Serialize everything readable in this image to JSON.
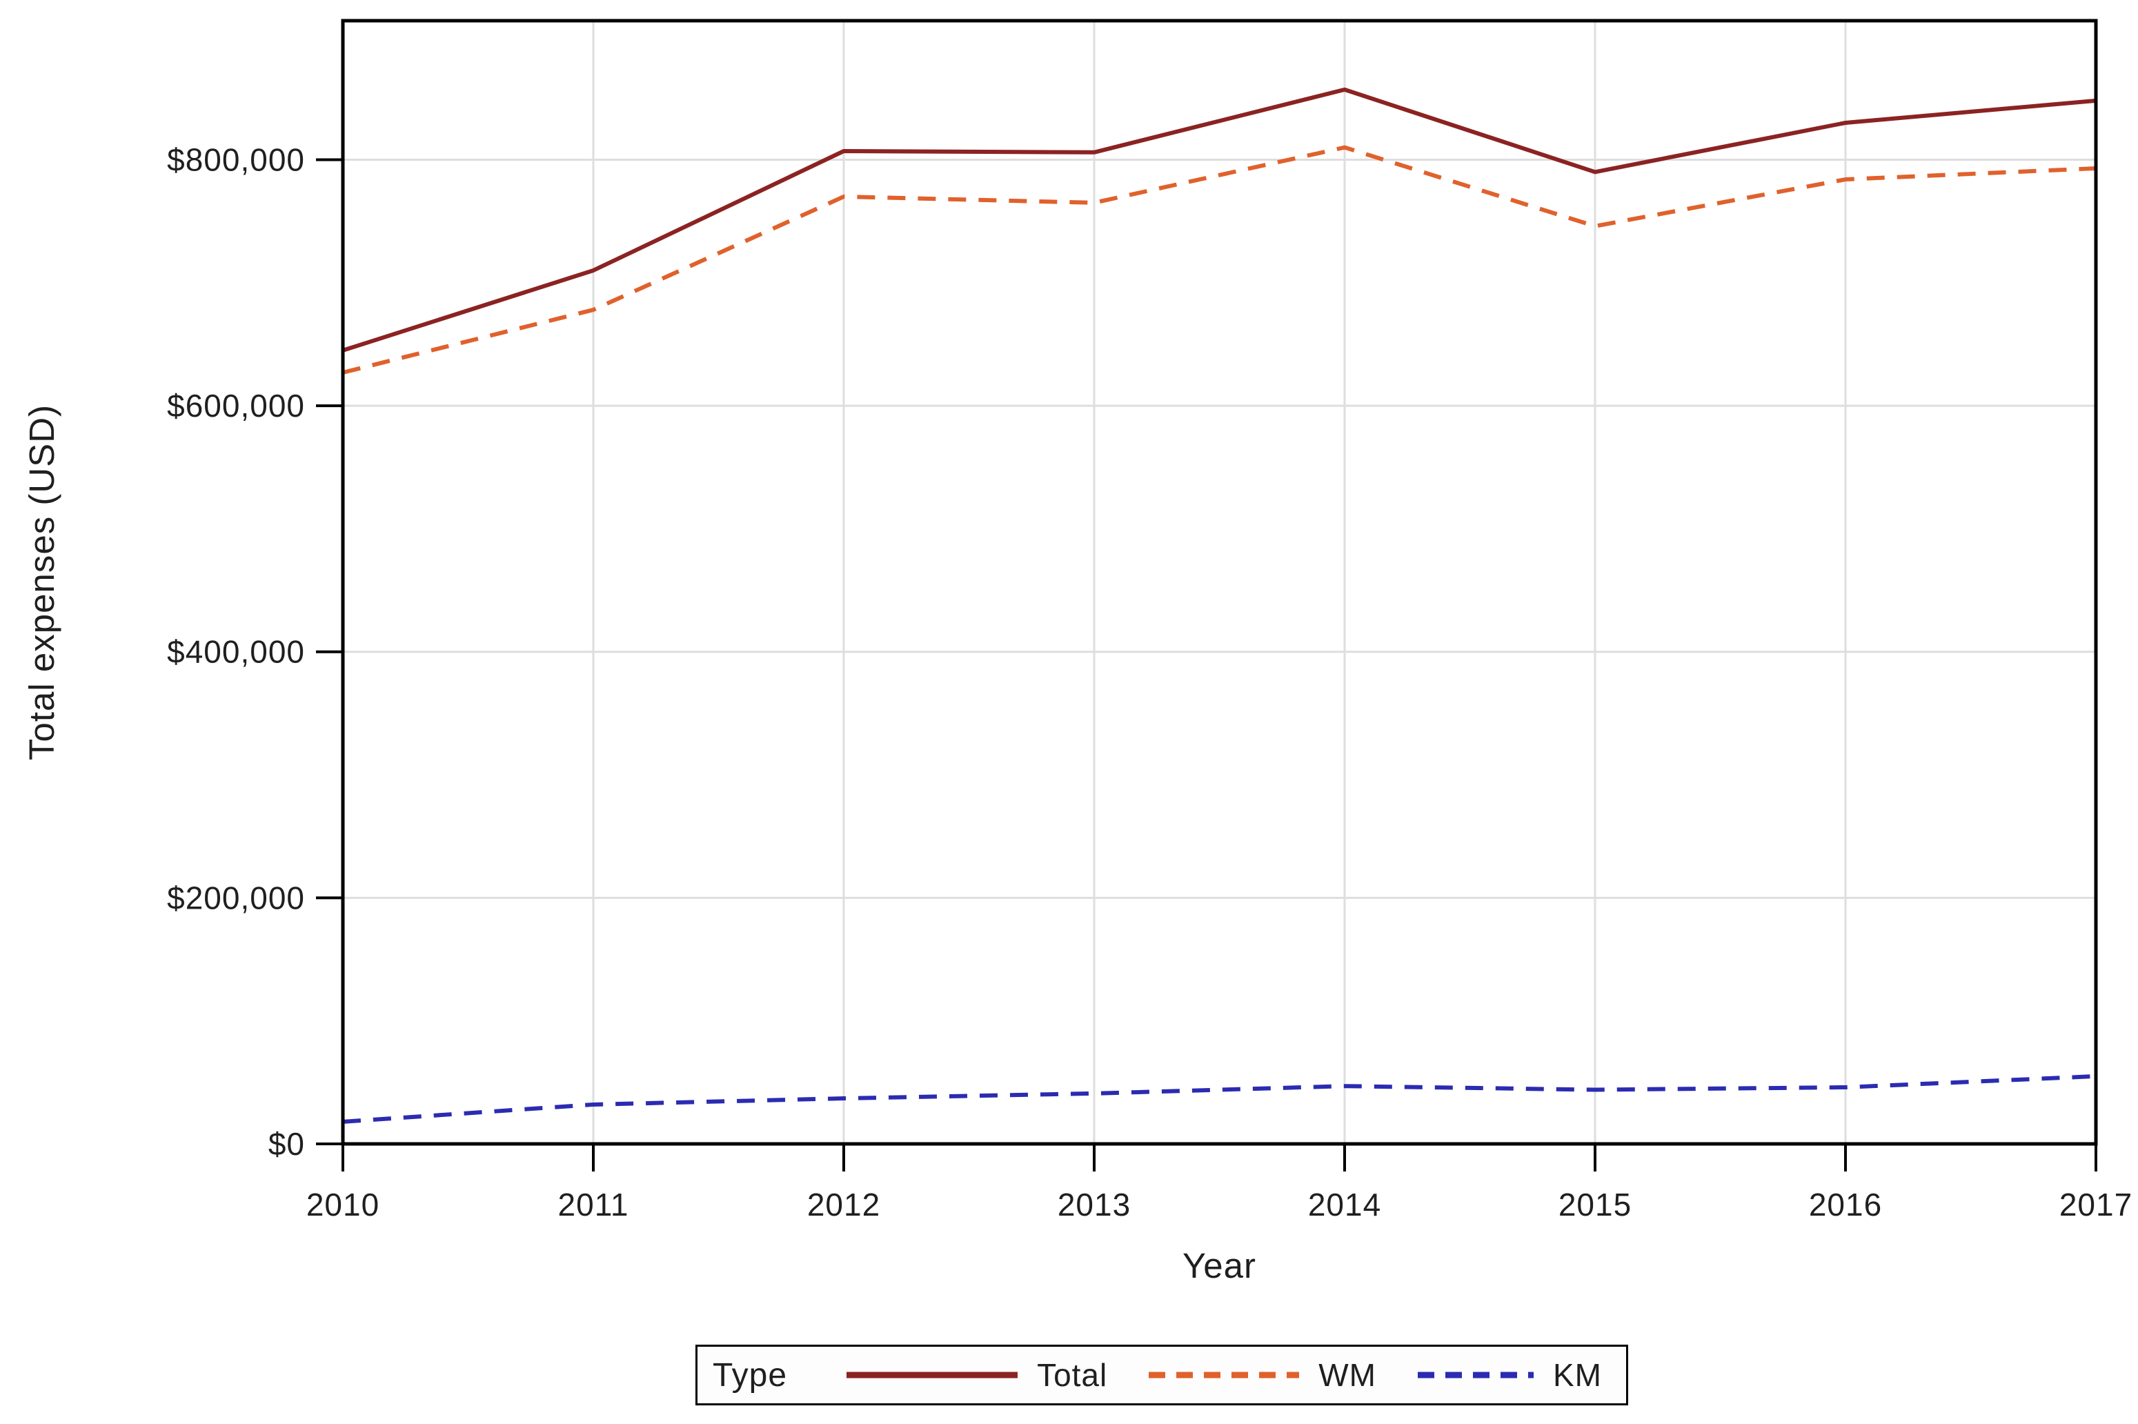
{
  "chart_data": {
    "type": "line",
    "title": "",
    "xlabel": "Year",
    "ylabel": "Total expenses (USD)",
    "x": [
      2010,
      2011,
      2012,
      2013,
      2014,
      2015,
      2016,
      2017
    ],
    "x_tick_labels": [
      "2010",
      "2011",
      "2012",
      "2013",
      "2014",
      "2015",
      "2016",
      "2017"
    ],
    "y_ticks": [
      0,
      200000,
      400000,
      600000,
      800000
    ],
    "y_tick_labels": [
      "$0",
      "$200,000",
      "$400,000",
      "$600,000",
      "$800,000"
    ],
    "ylim": [
      0,
      913000
    ],
    "grid": true,
    "gridline_color": "#dedede",
    "frame_color": "#000000",
    "series": [
      {
        "name": "Total",
        "color": "#8b2322",
        "line_style": "solid",
        "values": [
          645000,
          710000,
          807000,
          806000,
          857000,
          790000,
          830000,
          848000
        ]
      },
      {
        "name": "WM",
        "color": "#e0612c",
        "line_style": "dashed",
        "values": [
          627000,
          678000,
          770000,
          765000,
          810000,
          746000,
          784000,
          793000
        ]
      },
      {
        "name": "KM",
        "color": "#2b2bb2",
        "line_style": "dashed",
        "values": [
          18000,
          32000,
          37000,
          41000,
          47000,
          44000,
          46000,
          55000
        ]
      }
    ],
    "legend": {
      "title": "Type",
      "position": "bottom",
      "entries": [
        "Total",
        "WM",
        "KM"
      ]
    }
  }
}
